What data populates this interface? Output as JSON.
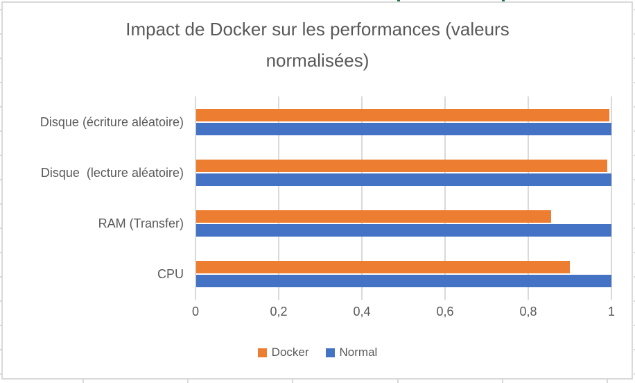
{
  "chart_data": {
    "type": "bar",
    "orientation": "horizontal",
    "title": "Impact de Docker sur les performances (valeurs normalisées)",
    "categories": [
      "Disque (écriture aléatoire)",
      "Disque  (lecture aléatoire)",
      "RAM (Transfer)",
      "CPU"
    ],
    "series": [
      {
        "name": "Docker",
        "color": "#ED7D31",
        "values": [
          0.995,
          0.99,
          0.855,
          0.9
        ]
      },
      {
        "name": "Normal",
        "color": "#4472C4",
        "values": [
          1.0,
          1.0,
          1.0,
          1.0
        ]
      }
    ],
    "xlim": [
      0,
      1
    ],
    "xticks": [
      {
        "label": "0",
        "value": 0.0
      },
      {
        "label": "0,2",
        "value": 0.2
      },
      {
        "label": "0,4",
        "value": 0.4
      },
      {
        "label": "0,6",
        "value": 0.6
      },
      {
        "label": "0,8",
        "value": 0.8
      },
      {
        "label": "1",
        "value": 1.0
      }
    ],
    "grid": true,
    "legend_position": "bottom",
    "legend": [
      {
        "label": "Docker",
        "color": "#ED7D31"
      },
      {
        "label": "Normal",
        "color": "#4472C4"
      }
    ]
  },
  "colors": {
    "text": "#595959",
    "gridline": "#D9D9D9",
    "chart_border": "#D9D9D9",
    "background": "#FFFFFF",
    "excel_mark_green": "#1F7244"
  }
}
